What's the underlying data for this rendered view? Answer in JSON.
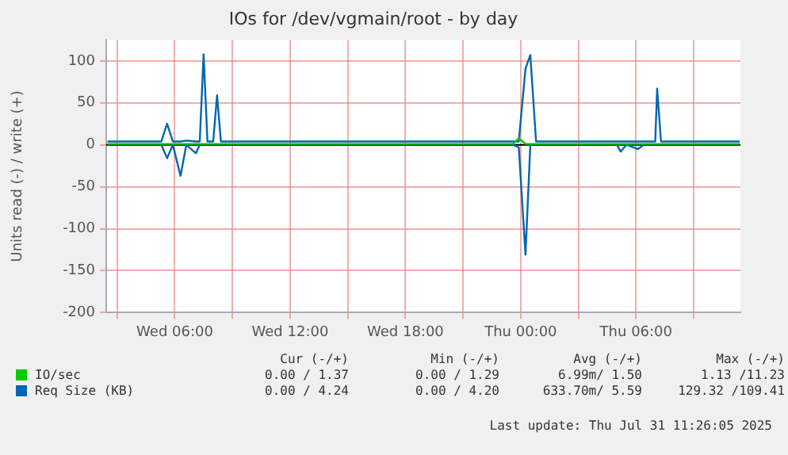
{
  "chart_data": {
    "type": "line",
    "title": "IOs for /dev/vgmain/root - by day",
    "ylabel": "Units read (-) / write (+)",
    "x": [
      "2025-07-30T02:30",
      "2025-07-30T05:18",
      "2025-07-30T05:36",
      "2025-07-30T05:54",
      "2025-07-30T06:18",
      "2025-07-30T06:36",
      "2025-07-30T07:06",
      "2025-07-30T07:18",
      "2025-07-30T07:30",
      "2025-07-30T07:42",
      "2025-07-30T08:00",
      "2025-07-30T08:12",
      "2025-07-30T08:24",
      "2025-07-30T12:00",
      "2025-07-30T18:00",
      "2025-07-30T23:36",
      "2025-07-30T23:54",
      "2025-07-31T00:15",
      "2025-07-31T00:30",
      "2025-07-31T00:48",
      "2025-07-31T05:00",
      "2025-07-31T05:12",
      "2025-07-31T05:30",
      "2025-07-31T06:06",
      "2025-07-31T06:24",
      "2025-07-31T07:00",
      "2025-07-31T07:06",
      "2025-07-31T07:18",
      "2025-07-31T11:24"
    ],
    "series": [
      {
        "name": "IO/sec",
        "color": "#00cc00",
        "values": [
          1,
          1,
          1,
          1,
          1,
          1,
          1,
          1,
          1,
          1,
          1,
          1,
          1,
          1,
          1,
          1,
          8,
          1,
          1,
          1,
          1,
          1,
          1,
          1,
          1,
          1,
          1,
          1,
          1
        ]
      },
      {
        "name": "Req Size (KB)",
        "color": "#0066b3",
        "values": [
          4,
          4,
          25,
          4,
          4,
          5,
          4,
          4,
          108,
          4,
          4,
          59,
          4,
          4,
          4,
          4,
          4,
          91,
          107,
          4,
          4,
          4,
          4,
          4,
          4,
          4,
          67,
          4,
          4
        ]
      },
      {
        "color": "#0066b3",
        "values": [
          null,
          0,
          -16,
          0,
          -37,
          0,
          -10,
          0,
          null,
          null,
          null,
          null,
          null,
          null,
          null,
          0,
          -3,
          -131,
          0,
          null,
          0,
          -8,
          0,
          -5,
          0,
          null,
          null,
          null,
          null
        ]
      }
    ],
    "xlim": [
      "2025-07-30T02:26",
      "2025-07-31T11:26"
    ],
    "xticks": [
      {
        "value": "2025-07-30T03:00",
        "label": null
      },
      {
        "value": "2025-07-30T06:00",
        "label": "Wed 06:00"
      },
      {
        "value": "2025-07-30T09:00",
        "label": null
      },
      {
        "value": "2025-07-30T12:00",
        "label": "Wed 12:00"
      },
      {
        "value": "2025-07-30T15:00",
        "label": null
      },
      {
        "value": "2025-07-30T18:00",
        "label": "Wed 18:00"
      },
      {
        "value": "2025-07-30T21:00",
        "label": null
      },
      {
        "value": "2025-07-31T00:00",
        "label": "Thu 00:00"
      },
      {
        "value": "2025-07-31T03:00",
        "label": null
      },
      {
        "value": "2025-07-31T06:00",
        "label": "Thu 06:00"
      },
      {
        "value": "2025-07-31T09:00",
        "label": null
      }
    ],
    "ylim": [
      -200,
      125
    ],
    "yticks": [
      -200,
      -150,
      -100,
      -50,
      0,
      50,
      100
    ],
    "ref_lines": [
      {
        "axis": "y",
        "value": 0,
        "color": "#000000"
      }
    ],
    "grid": true,
    "legend": "bottom",
    "marker": "none",
    "line_style": "solid",
    "annotations": [
      "Cur (-/+)",
      "Min (-/+)",
      "Avg (-/+)",
      "Max (-/+)",
      "0.00 / 1.37",
      "0.00 / 1.29",
      "6.99m/ 1.50",
      "1.13 /11.23",
      "0.00 / 4.24",
      "0.00 / 4.20",
      "633.70m/ 5.59",
      "129.32 /109.41",
      "Last update: Thu Jul 31 11:26:05 2025"
    ]
  }
}
